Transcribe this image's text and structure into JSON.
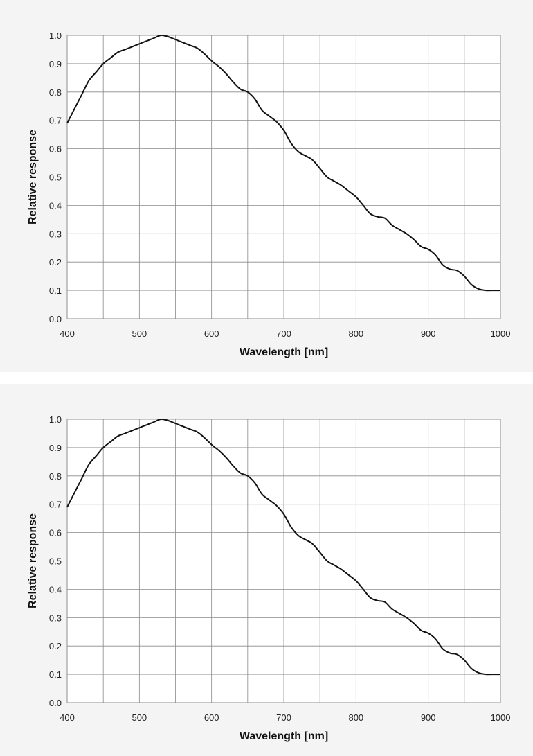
{
  "chart_data": [
    {
      "type": "line",
      "xlabel": "Wavelength [nm]",
      "ylabel": "Relative response",
      "xlim": [
        400,
        1000
      ],
      "ylim": [
        0.0,
        1.0
      ],
      "x_ticks": [
        "400",
        "500",
        "600",
        "700",
        "800",
        "900",
        "1000"
      ],
      "y_ticks": [
        "0.0",
        "0.1",
        "0.2",
        "0.3",
        "0.4",
        "0.5",
        "0.6",
        "0.7",
        "0.8",
        "0.9",
        "1.0"
      ],
      "grid": true,
      "series": [
        {
          "color": "#111111",
          "x": [
            400,
            410,
            420,
            430,
            440,
            450,
            460,
            470,
            480,
            490,
            500,
            510,
            520,
            530,
            540,
            550,
            560,
            570,
            580,
            590,
            600,
            610,
            620,
            630,
            640,
            650,
            660,
            670,
            680,
            690,
            700,
            710,
            720,
            730,
            740,
            750,
            760,
            770,
            780,
            790,
            800,
            810,
            820,
            830,
            840,
            850,
            860,
            870,
            880,
            890,
            900,
            910,
            920,
            930,
            940,
            950,
            960,
            970,
            980,
            990,
            1000
          ],
          "y": [
            0.69,
            0.74,
            0.79,
            0.84,
            0.87,
            0.9,
            0.92,
            0.94,
            0.95,
            0.96,
            0.97,
            0.98,
            0.99,
            1.0,
            0.995,
            0.985,
            0.975,
            0.965,
            0.955,
            0.935,
            0.91,
            0.89,
            0.865,
            0.835,
            0.81,
            0.8,
            0.775,
            0.735,
            0.715,
            0.695,
            0.665,
            0.62,
            0.59,
            0.575,
            0.56,
            0.53,
            0.5,
            0.485,
            0.47,
            0.45,
            0.43,
            0.4,
            0.37,
            0.36,
            0.355,
            0.33,
            0.315,
            0.3,
            0.28,
            0.255,
            0.245,
            0.225,
            0.19,
            0.175,
            0.17,
            0.15,
            0.12,
            0.105,
            0.1,
            0.1,
            0.1
          ]
        }
      ]
    },
    {
      "type": "line",
      "xlabel": "Wavelength [nm]",
      "ylabel": "Relative response",
      "xlim": [
        400,
        1000
      ],
      "ylim": [
        0.0,
        1.0
      ],
      "x_ticks": [
        "400",
        "500",
        "600",
        "700",
        "800",
        "900",
        "1000"
      ],
      "y_ticks": [
        "0.0",
        "0.1",
        "0.2",
        "0.3",
        "0.4",
        "0.5",
        "0.6",
        "0.7",
        "0.8",
        "0.9",
        "1.0"
      ],
      "grid": true,
      "series": [
        {
          "color": "#111111",
          "x": [
            400,
            410,
            420,
            430,
            440,
            450,
            460,
            470,
            480,
            490,
            500,
            510,
            520,
            530,
            540,
            550,
            560,
            570,
            580,
            590,
            600,
            610,
            620,
            630,
            640,
            650,
            660,
            670,
            680,
            690,
            700,
            710,
            720,
            730,
            740,
            750,
            760,
            770,
            780,
            790,
            800,
            810,
            820,
            830,
            840,
            850,
            860,
            870,
            880,
            890,
            900,
            910,
            920,
            930,
            940,
            950,
            960,
            970,
            980,
            990,
            1000
          ],
          "y": [
            0.69,
            0.74,
            0.79,
            0.84,
            0.87,
            0.9,
            0.92,
            0.94,
            0.95,
            0.96,
            0.97,
            0.98,
            0.99,
            1.0,
            0.995,
            0.985,
            0.975,
            0.965,
            0.955,
            0.935,
            0.91,
            0.89,
            0.865,
            0.835,
            0.81,
            0.8,
            0.775,
            0.735,
            0.715,
            0.695,
            0.665,
            0.62,
            0.59,
            0.575,
            0.56,
            0.53,
            0.5,
            0.485,
            0.47,
            0.45,
            0.43,
            0.4,
            0.37,
            0.36,
            0.355,
            0.33,
            0.315,
            0.3,
            0.28,
            0.255,
            0.245,
            0.225,
            0.19,
            0.175,
            0.17,
            0.15,
            0.12,
            0.105,
            0.1,
            0.1,
            0.1
          ]
        }
      ]
    }
  ]
}
